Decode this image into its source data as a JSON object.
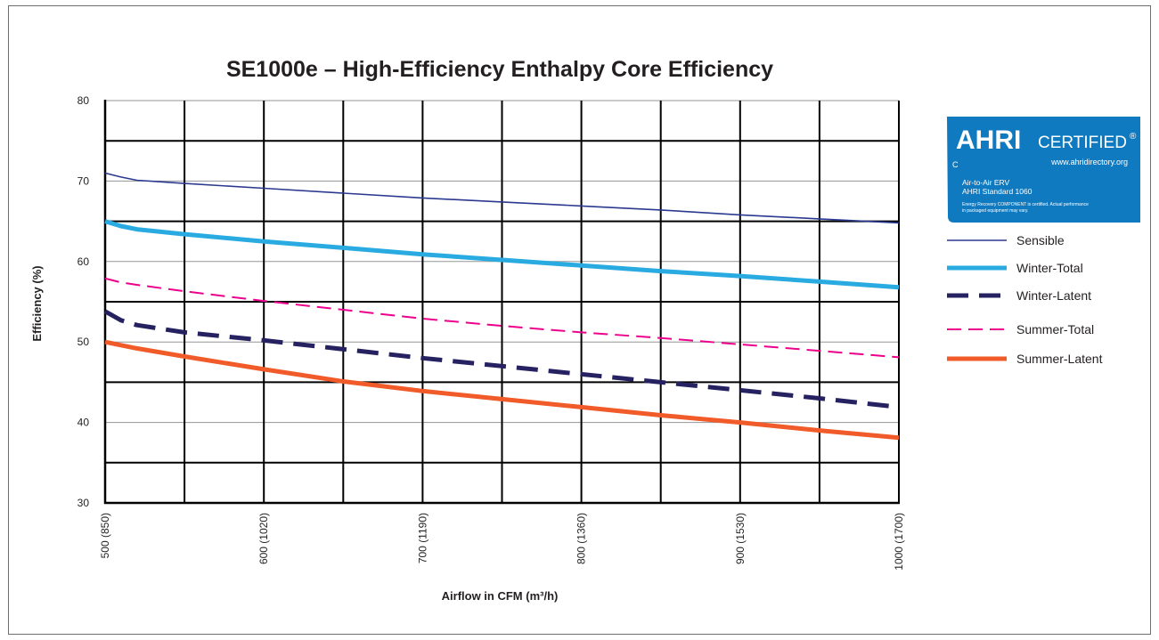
{
  "chart_data": {
    "type": "line",
    "title": "SE1000e – High-Efficiency Enthalpy Core Efficiency",
    "xlabel": "Airflow in CFM (m³/h)",
    "ylabel": "Efficiency (%)",
    "xlim": [
      500,
      1000
    ],
    "ylim": [
      30,
      80
    ],
    "x_ticks": [
      {
        "value": 500,
        "label": "500 (850)"
      },
      {
        "value": 600,
        "label": "600 (1020)"
      },
      {
        "value": 700,
        "label": "700 (1190)"
      },
      {
        "value": 800,
        "label": "800 (1360)"
      },
      {
        "value": 900,
        "label": "900 (1530)"
      },
      {
        "value": 1000,
        "label": "1000 (1700)"
      }
    ],
    "y_ticks": [
      30,
      40,
      50,
      60,
      70,
      80
    ],
    "grid": true,
    "legend_position": "right",
    "x": [
      500,
      510,
      520,
      550,
      600,
      650,
      700,
      750,
      800,
      850,
      900,
      950,
      1000
    ],
    "series": [
      {
        "name": "Sensible",
        "color": "#2b3990",
        "style": "thin-solid",
        "values": [
          71,
          70.5,
          70.1,
          69.7,
          69.1,
          68.5,
          67.9,
          67.4,
          66.9,
          66.4,
          65.8,
          65.3,
          64.8
        ]
      },
      {
        "name": "Winter-Total",
        "color": "#29abe2",
        "style": "thick-solid",
        "values": [
          65,
          64.4,
          64.0,
          63.4,
          62.5,
          61.7,
          60.9,
          60.2,
          59.5,
          58.8,
          58.2,
          57.5,
          56.8
        ]
      },
      {
        "name": "Winter-Latent",
        "color": "#262262",
        "style": "thick-dash",
        "values": [
          53.8,
          52.7,
          52.1,
          51.2,
          50.2,
          49.1,
          48.0,
          47.0,
          46.0,
          45.0,
          44.0,
          43.0,
          41.9
        ]
      },
      {
        "name": "Summer-Total",
        "color": "#ec008c",
        "style": "thin-dash",
        "values": [
          57.9,
          57.4,
          57.1,
          56.3,
          55.1,
          54.0,
          52.9,
          52.0,
          51.2,
          50.5,
          49.7,
          48.9,
          48.1
        ]
      },
      {
        "name": "Summer-Latent",
        "color": "#f15a29",
        "style": "thick-solid",
        "values": [
          50.0,
          49.6,
          49.2,
          48.2,
          46.6,
          45.1,
          43.9,
          42.9,
          41.9,
          40.9,
          40.0,
          39.0,
          38.1
        ]
      }
    ]
  },
  "badge": {
    "brand": "AHRI",
    "certified": "CERTIFIED",
    "registered": "®",
    "url": "www.ahridirectory.org",
    "c_mark": "C",
    "line1": "Air-to-Air ERV",
    "line2": "AHRI Standard 1060",
    "fine1": "Energy Recovery COMPONENT is certified. Actual performance",
    "fine2": "in packaged equipment may vary.",
    "color": "#0f7ac0"
  }
}
